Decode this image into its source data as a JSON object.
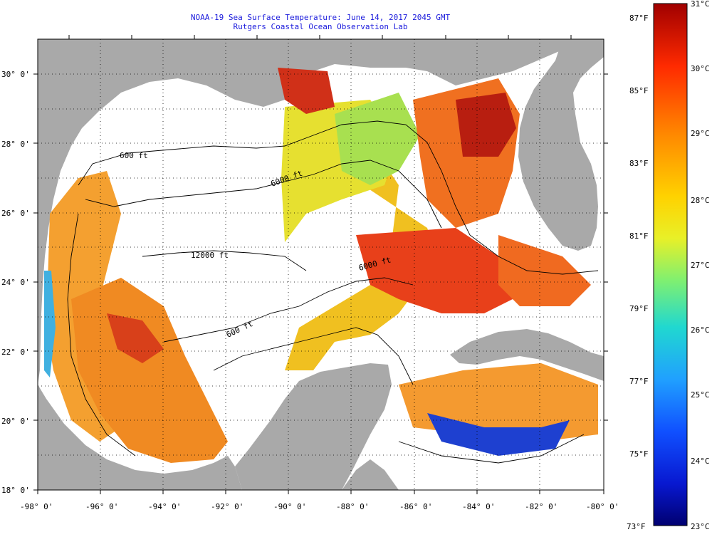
{
  "header": {
    "title": "NOAA-19 Sea Surface Temperature:  June 14, 2017 2045 GMT",
    "subtitle": "Rutgers Coastal Ocean Observation Lab"
  },
  "map": {
    "lon_range": [
      -98,
      -80
    ],
    "lat_range": [
      18,
      31
    ],
    "lon_labels": [
      "-98° 0'",
      "-96° 0'",
      "-94° 0'",
      "-92° 0'",
      "-90° 0'",
      "-88° 0'",
      "-86° 0'",
      "-84° 0'",
      "-82° 0'",
      "-80° 0'"
    ],
    "lat_labels": [
      "18° 0'",
      "20° 0'",
      "22° 0'",
      "24° 0'",
      "26° 0'",
      "28° 0'",
      "30° 0'"
    ],
    "contour_labels": [
      "600 ft",
      "6000 ft",
      "12000 ft",
      "6000 ft",
      "600 ft"
    ],
    "colors": {
      "land": "#a9a9a9",
      "cloud": "#ffffff",
      "frame": "#000000"
    }
  },
  "colorbar": {
    "fahrenheit_labels": [
      "87°F",
      "85°F",
      "83°F",
      "81°F",
      "79°F",
      "77°F",
      "75°F",
      "73°F"
    ],
    "celsius_labels": [
      "31°C",
      "30°C",
      "29°C",
      "28°C",
      "27°C",
      "26°C",
      "25°C",
      "24°C",
      "23°C"
    ],
    "range_c": [
      23,
      31
    ]
  }
}
